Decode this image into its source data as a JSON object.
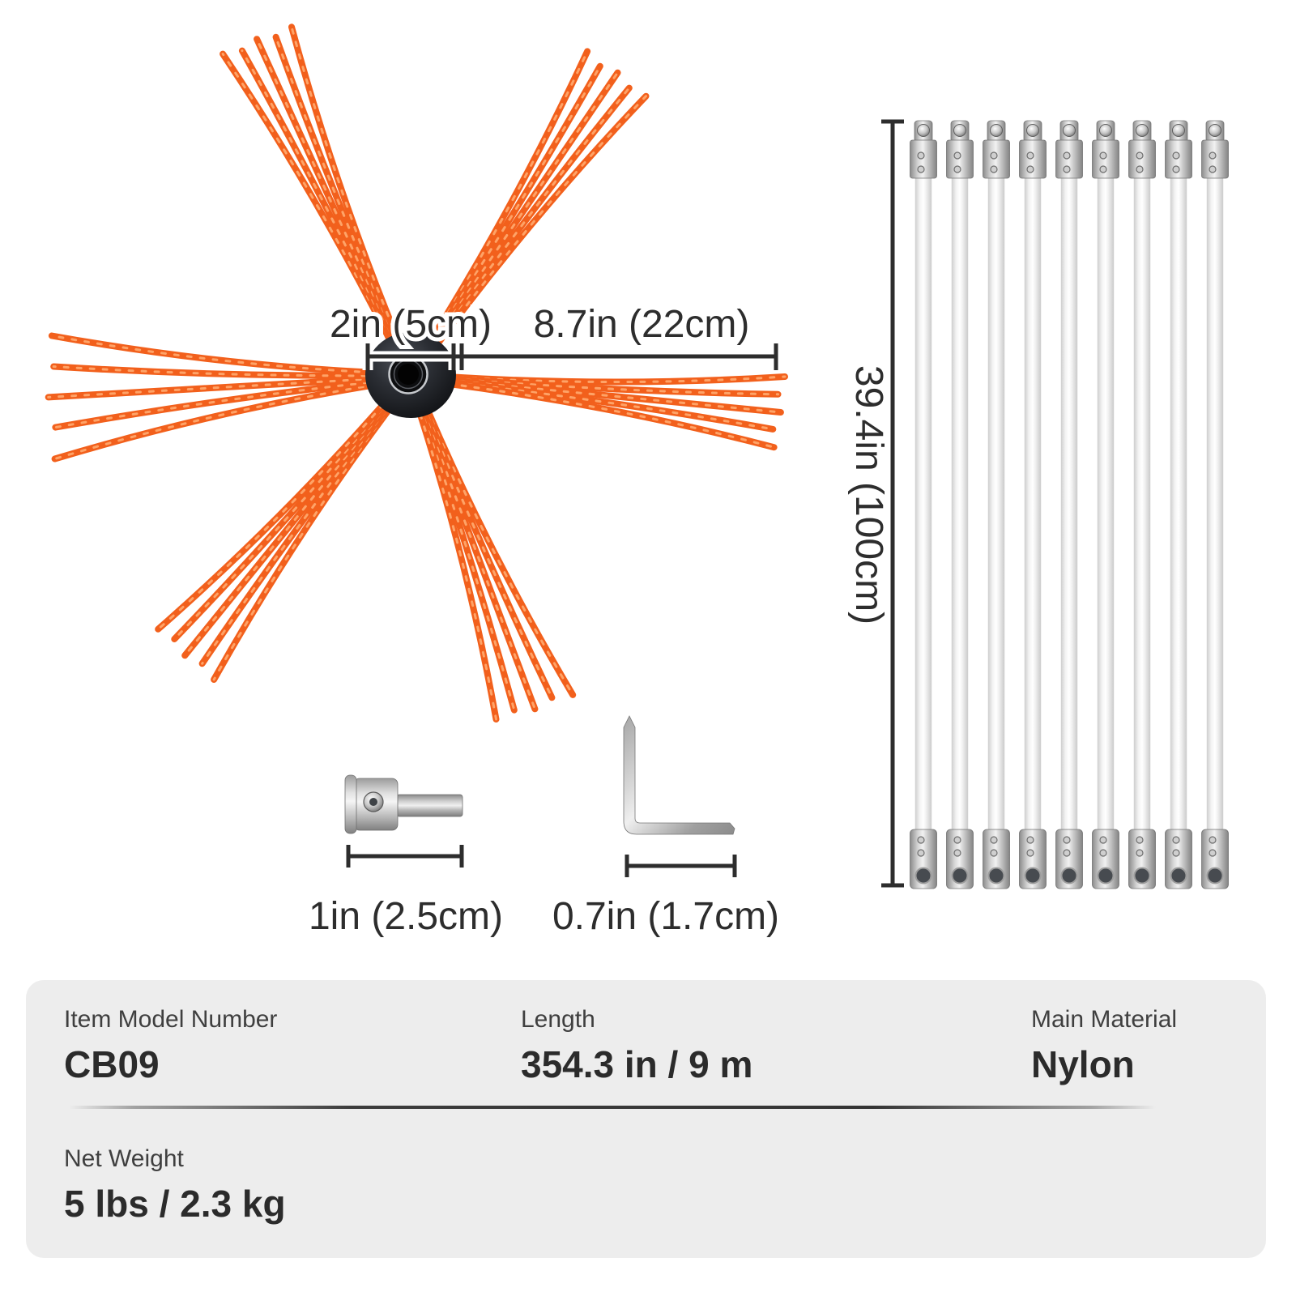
{
  "product_diagram": {
    "brush": {
      "hub_width_label": "2in (5cm)",
      "bristle_length_label": "8.7in (22cm)"
    },
    "rod": {
      "count": 9,
      "length_label": "39.4in (100cm)"
    },
    "adapter": {
      "length_label": "1in (2.5cm)"
    },
    "hex_key": {
      "length_label": "0.7in (1.7cm)"
    }
  },
  "spec_panel": {
    "row1": [
      {
        "label": "Item Model Number",
        "value": "CB09"
      },
      {
        "label": "Length",
        "value": "354.3 in / 9 m"
      },
      {
        "label": "Main Material",
        "value": "Nylon"
      }
    ],
    "row2": [
      {
        "label": "Net Weight",
        "value": "5 lbs / 2.3 kg"
      }
    ]
  },
  "colors": {
    "bristle": "#f2601c",
    "bristle_highlight": "#ffab70",
    "hub_dark": "#17191d",
    "dimension": "#2d2d2d",
    "panel_bg": "#ededed"
  }
}
